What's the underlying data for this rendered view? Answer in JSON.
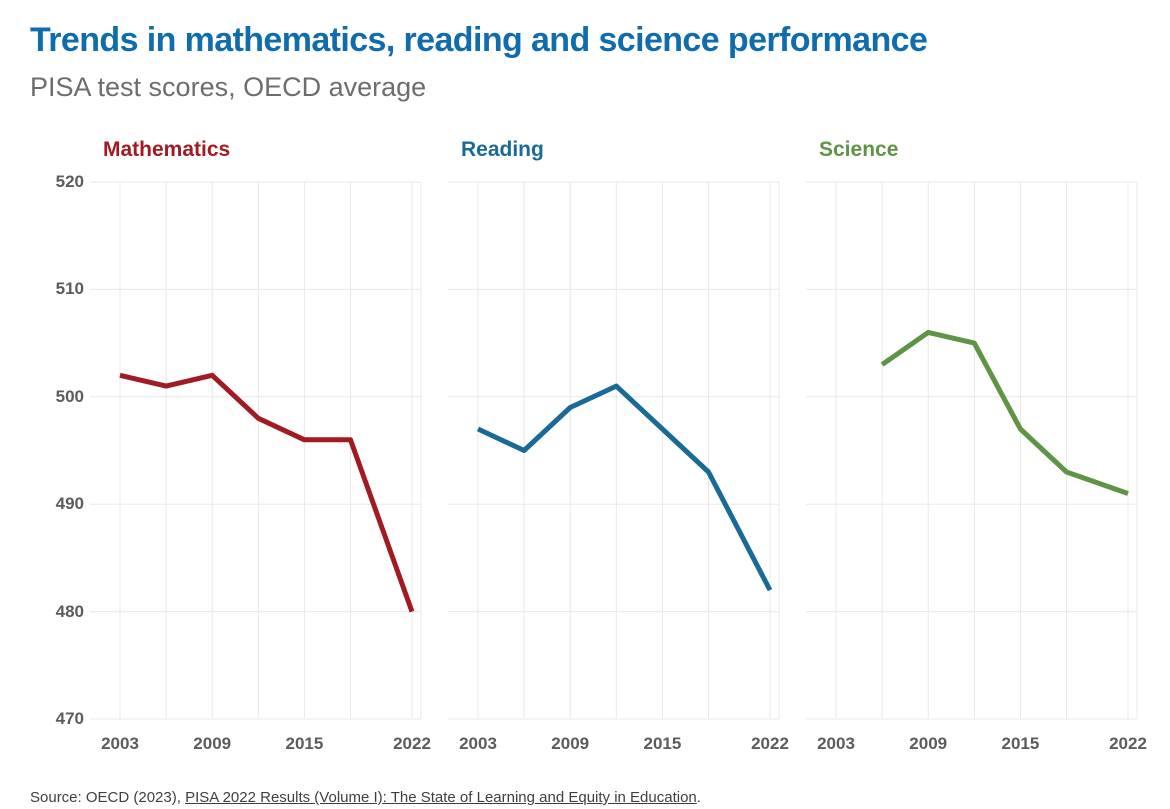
{
  "header": {
    "title": "Trends in mathematics, reading and science performance",
    "subtitle": "PISA test scores, OECD average"
  },
  "chart_data": {
    "type": "line",
    "layout": "three small multiples sharing one y-axis, legend off, grid on",
    "x_gridline_years": [
      2003,
      2006,
      2009,
      2012,
      2015,
      2018,
      2022
    ],
    "x_tick_labels": [
      "2003",
      "2009",
      "2015",
      "2022"
    ],
    "y_ticks": [
      470,
      480,
      490,
      500,
      510,
      520
    ],
    "ylim": [
      470,
      520
    ],
    "xlim": [
      2003,
      2022
    ],
    "panels": [
      {
        "title": "Mathematics",
        "color": "#a21a22",
        "x": [
          2003,
          2006,
          2009,
          2012,
          2015,
          2018,
          2022
        ],
        "values": [
          502,
          501,
          502,
          498,
          496,
          496,
          480
        ]
      },
      {
        "title": "Reading",
        "color": "#1a6a98",
        "x": [
          2003,
          2006,
          2009,
          2012,
          2015,
          2018,
          2022
        ],
        "values": [
          497,
          495,
          499,
          501,
          497,
          493,
          482
        ]
      },
      {
        "title": "Science",
        "color": "#5f9345",
        "x": [
          2006,
          2009,
          2012,
          2015,
          2018,
          2022
        ],
        "values": [
          503,
          506,
          505,
          497,
          493,
          491
        ]
      }
    ]
  },
  "footer": {
    "source_prefix": "Source: OECD (2023), ",
    "source_link_text": "PISA 2022 Results (Volume I): The State of Learning and Equity in Education",
    "source_suffix": "."
  },
  "colors": {
    "title": "#0f6dae",
    "subtitle": "#6d6d6d",
    "grid": "#e8e8e8",
    "tick_label": "#5c5c5c",
    "source_text": "#3f3f3f"
  }
}
